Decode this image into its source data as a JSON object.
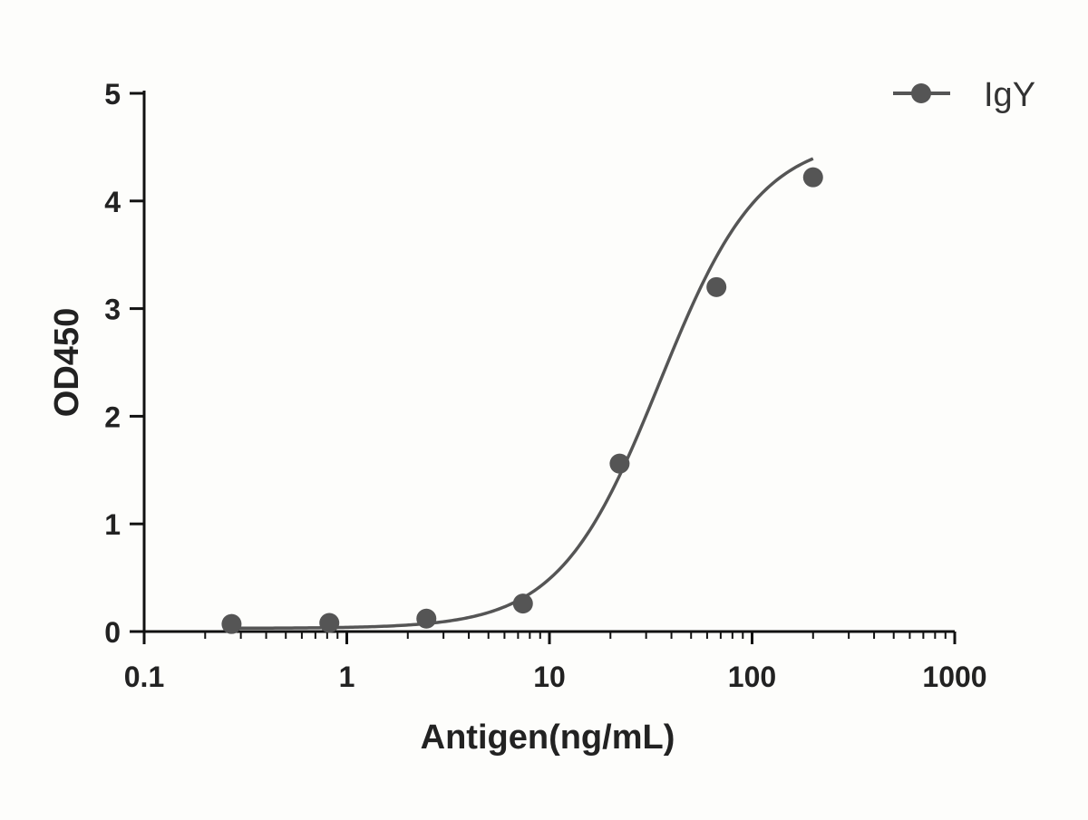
{
  "chart_data": {
    "type": "scatter",
    "title": "",
    "xlabel": "Antigen(ng/mL)",
    "ylabel": "OD450",
    "x_scale": "log",
    "xlim": [
      0.1,
      1000
    ],
    "ylim": [
      0,
      5
    ],
    "x_ticks": [
      0.1,
      1,
      10,
      100,
      1000
    ],
    "x_tick_labels": [
      "0.1",
      "1",
      "10",
      "100",
      "1000"
    ],
    "y_ticks": [
      0,
      1,
      2,
      3,
      4,
      5
    ],
    "y_tick_labels": [
      "0",
      "1",
      "2",
      "3",
      "4",
      "5"
    ],
    "grid": false,
    "legend_position": "top-right",
    "series": [
      {
        "name": "IgY",
        "color": "#555555",
        "marker": "circle",
        "fit": "sigmoidal (4PL) curve",
        "x": [
          0.27,
          0.82,
          2.47,
          7.4,
          22.2,
          66.7,
          200
        ],
        "y": [
          0.07,
          0.08,
          0.12,
          0.26,
          1.56,
          3.2,
          4.22
        ]
      }
    ]
  }
}
